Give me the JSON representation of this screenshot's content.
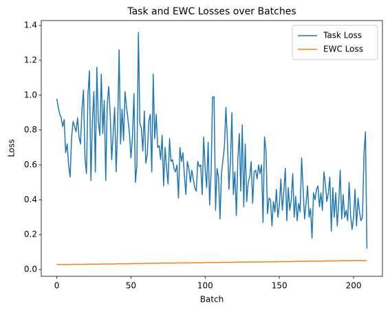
{
  "chart_data": {
    "type": "line",
    "title": "Task and EWC Losses over Batches",
    "x_label": "Batch",
    "y_label": "Loss",
    "x": [
      0,
      1,
      2,
      3,
      4,
      5,
      6,
      7,
      8,
      9,
      10,
      11,
      12,
      13,
      14,
      15,
      16,
      17,
      18,
      19,
      20,
      21,
      22,
      23,
      24,
      25,
      26,
      27,
      28,
      29,
      30,
      31,
      32,
      33,
      34,
      35,
      36,
      37,
      38,
      39,
      40,
      41,
      42,
      43,
      44,
      45,
      46,
      47,
      48,
      49,
      50,
      51,
      52,
      53,
      54,
      55,
      56,
      57,
      58,
      59,
      60,
      61,
      62,
      63,
      64,
      65,
      66,
      67,
      68,
      69,
      70,
      71,
      72,
      73,
      74,
      75,
      76,
      77,
      78,
      79,
      80,
      81,
      82,
      83,
      84,
      85,
      86,
      87,
      88,
      89,
      90,
      91,
      92,
      93,
      94,
      95,
      96,
      97,
      98,
      99,
      100,
      101,
      102,
      103,
      104,
      105,
      106,
      107,
      108,
      109,
      110,
      111,
      112,
      113,
      114,
      115,
      116,
      117,
      118,
      119,
      120,
      121,
      122,
      123,
      124,
      125,
      126,
      127,
      128,
      129,
      130,
      131,
      132,
      133,
      134,
      135,
      136,
      137,
      138,
      139,
      140,
      141,
      142,
      143,
      144,
      145,
      146,
      147,
      148,
      149,
      150,
      151,
      152,
      153,
      154,
      155,
      156,
      157,
      158,
      159,
      160,
      161,
      162,
      163,
      164,
      165,
      166,
      167,
      168,
      169,
      170,
      171,
      172,
      173,
      174,
      175,
      176,
      177,
      178,
      179,
      180,
      181,
      182,
      183,
      184,
      185,
      186,
      187,
      188,
      189,
      190,
      191,
      192,
      193,
      194,
      195,
      196,
      197,
      198,
      199,
      200,
      201,
      202,
      203,
      204,
      205,
      206,
      207,
      208,
      209
    ],
    "series": [
      {
        "name": "Task Loss",
        "color": "#1f77b4",
        "values": [
          0.98,
          0.93,
          0.89,
          0.87,
          0.82,
          0.86,
          0.67,
          0.72,
          0.6,
          0.53,
          0.76,
          0.85,
          0.82,
          0.79,
          0.87,
          0.76,
          0.72,
          0.92,
          1.03,
          0.64,
          0.55,
          1.0,
          1.14,
          0.51,
          0.85,
          1.02,
          0.56,
          1.16,
          0.85,
          0.77,
          1.12,
          0.78,
          0.97,
          0.51,
          0.95,
          1.05,
          0.89,
          0.63,
          0.78,
          0.93,
          0.56,
          0.82,
          1.26,
          0.72,
          0.92,
          0.74,
          1.02,
          0.93,
          0.86,
          0.78,
          0.64,
          0.76,
          1.01,
          0.5,
          0.6,
          1.36,
          0.84,
          0.81,
          0.68,
          0.91,
          0.61,
          0.66,
          0.85,
          0.89,
          0.56,
          1.12,
          0.75,
          0.89,
          0.7,
          0.71,
          0.63,
          0.77,
          0.48,
          0.7,
          0.58,
          0.49,
          0.75,
          0.62,
          0.63,
          0.58,
          0.56,
          0.6,
          0.41,
          0.7,
          0.62,
          0.67,
          0.54,
          0.43,
          0.62,
          0.58,
          0.5,
          0.57,
          0.52,
          0.47,
          0.45,
          0.62,
          0.59,
          0.6,
          0.43,
          0.76,
          0.58,
          0.47,
          0.73,
          0.37,
          0.56,
          0.99,
          0.99,
          0.34,
          0.58,
          0.53,
          0.29,
          0.55,
          0.63,
          0.71,
          0.93,
          0.74,
          0.46,
          0.61,
          0.9,
          0.43,
          0.56,
          0.31,
          0.63,
          0.78,
          0.45,
          0.83,
          0.36,
          0.72,
          0.39,
          0.5,
          0.53,
          0.62,
          0.38,
          0.56,
          0.57,
          0.52,
          0.6,
          0.55,
          0.6,
          0.27,
          0.76,
          0.68,
          0.32,
          0.41,
          0.4,
          0.25,
          0.39,
          0.33,
          0.46,
          0.3,
          0.37,
          0.52,
          0.34,
          0.45,
          0.58,
          0.28,
          0.47,
          0.34,
          0.4,
          0.55,
          0.3,
          0.42,
          0.28,
          0.38,
          0.33,
          0.64,
          0.46,
          0.29,
          0.38,
          0.48,
          0.3,
          0.35,
          0.18,
          0.44,
          0.4,
          0.46,
          0.48,
          0.36,
          0.44,
          0.34,
          0.56,
          0.49,
          0.39,
          0.44,
          0.53,
          0.22,
          0.47,
          0.3,
          0.44,
          0.25,
          0.38,
          0.57,
          0.29,
          0.43,
          0.3,
          0.34,
          0.28,
          0.5,
          0.31,
          0.23,
          0.3,
          0.46,
          0.25,
          0.41,
          0.33,
          0.28,
          0.3,
          0.66,
          0.79,
          0.12
        ]
      },
      {
        "name": "EWC Loss",
        "color": "#ff7f0e",
        "values": [
          0.0286,
          0.0286,
          0.0286,
          0.0286,
          0.0286,
          0.0286,
          0.0286,
          0.0286,
          0.0286,
          0.0286,
          0.0297,
          0.0297,
          0.0297,
          0.0297,
          0.0297,
          0.0297,
          0.0297,
          0.0297,
          0.0297,
          0.0297,
          0.0309,
          0.0309,
          0.0309,
          0.0309,
          0.0309,
          0.0309,
          0.0309,
          0.0309,
          0.0309,
          0.0309,
          0.032,
          0.032,
          0.032,
          0.032,
          0.032,
          0.032,
          0.032,
          0.032,
          0.032,
          0.032,
          0.0332,
          0.0332,
          0.0332,
          0.0332,
          0.0332,
          0.0332,
          0.0332,
          0.0332,
          0.0332,
          0.0332,
          0.0343,
          0.0343,
          0.0343,
          0.0343,
          0.0343,
          0.0343,
          0.0343,
          0.0343,
          0.0343,
          0.0343,
          0.0355,
          0.0355,
          0.0355,
          0.0355,
          0.0355,
          0.0355,
          0.0355,
          0.0355,
          0.0355,
          0.0355,
          0.0366,
          0.0366,
          0.0366,
          0.0366,
          0.0366,
          0.0366,
          0.0366,
          0.0366,
          0.0366,
          0.0366,
          0.0378,
          0.0378,
          0.0378,
          0.0378,
          0.0378,
          0.0378,
          0.0378,
          0.0378,
          0.0378,
          0.0378,
          0.0389,
          0.0389,
          0.0389,
          0.0389,
          0.0389,
          0.0389,
          0.0389,
          0.0389,
          0.0389,
          0.0389,
          0.0401,
          0.0401,
          0.0401,
          0.0401,
          0.0401,
          0.0401,
          0.0401,
          0.0401,
          0.0401,
          0.0401,
          0.0412,
          0.0412,
          0.0412,
          0.0412,
          0.0412,
          0.0412,
          0.0412,
          0.0412,
          0.0412,
          0.0412,
          0.0424,
          0.0424,
          0.0424,
          0.0424,
          0.0424,
          0.0424,
          0.0424,
          0.0424,
          0.0424,
          0.0424,
          0.0435,
          0.0435,
          0.0435,
          0.0435,
          0.0435,
          0.0435,
          0.0435,
          0.0435,
          0.0435,
          0.0435,
          0.0447,
          0.0447,
          0.0447,
          0.0447,
          0.0447,
          0.0447,
          0.0447,
          0.0447,
          0.0447,
          0.0447,
          0.0458,
          0.0458,
          0.0458,
          0.0458,
          0.0458,
          0.0458,
          0.0458,
          0.0458,
          0.0458,
          0.0458,
          0.047,
          0.047,
          0.047,
          0.047,
          0.047,
          0.047,
          0.047,
          0.047,
          0.047,
          0.047,
          0.0481,
          0.0481,
          0.0481,
          0.0481,
          0.0481,
          0.0481,
          0.0481,
          0.0481,
          0.0481,
          0.0481,
          0.0493,
          0.0493,
          0.0493,
          0.0493,
          0.0493,
          0.0493,
          0.0493,
          0.0493,
          0.0493,
          0.0493,
          0.0504,
          0.0504,
          0.0504,
          0.0504,
          0.0504,
          0.0504,
          0.0504,
          0.0504,
          0.0504,
          0.0504,
          0.0516,
          0.0516,
          0.0516,
          0.0516,
          0.0516,
          0.0516,
          0.0516,
          0.0516,
          0.0516,
          0.0516
        ]
      }
    ],
    "xlim": [
      -10.45,
      219.45
    ],
    "xticks": [
      0,
      50,
      100,
      150,
      200
    ],
    "ylim": [
      -0.039,
      1.428
    ],
    "yticks": [
      {
        "value": 0,
        "label": "0.0"
      },
      0.2,
      0.4,
      0.6,
      0.8,
      {
        "value": 1,
        "label": "1.0"
      },
      1.2,
      1.4
    ],
    "grid": false,
    "legend": "upper right"
  }
}
